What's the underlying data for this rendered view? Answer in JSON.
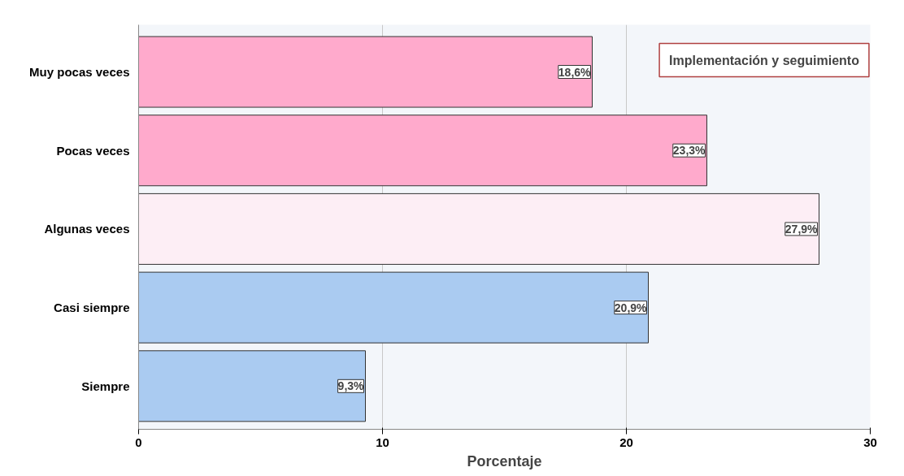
{
  "chart_data": {
    "type": "bar",
    "orientation": "horizontal",
    "title": "Implementación y seguimiento",
    "xlabel": "Porcentaje",
    "categories": [
      "Muy pocas veces",
      "Pocas veces",
      "Algunas veces",
      "Casi siempre",
      "Siempre"
    ],
    "values": [
      18.6,
      23.3,
      27.9,
      20.9,
      9.3
    ],
    "colors": [
      "#ffaacc",
      "#ffaacc",
      "#fdeef5",
      "#aacbf1",
      "#aacbf1"
    ],
    "value_labels": [
      "18,6%",
      "23,3%",
      "27,9%",
      "20,9%",
      "9,3%"
    ],
    "xlim": [
      0,
      30
    ],
    "xticks": [
      0,
      10,
      20,
      30
    ],
    "grid": "x"
  }
}
